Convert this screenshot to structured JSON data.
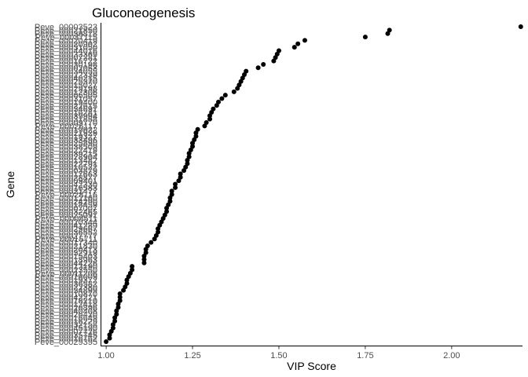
{
  "chart_data": {
    "type": "scatter",
    "title": "Gluconeogenesis",
    "xlabel": "VIP Score",
    "ylabel": "Gene",
    "xlim": [
      0.985,
      2.205
    ],
    "x_ticks": [
      1.0,
      1.25,
      1.5,
      1.75,
      2.0,
      2.25
    ],
    "x_tick_labels": [
      "1.00",
      "1.25",
      "1.50",
      "1.75",
      "2.00",
      "2.25"
    ],
    "grid": false,
    "legend": "none",
    "point_color": "#000000",
    "categories": [
      "Peve_00029395",
      "Peve_00016762",
      "Peve_00035745",
      "Peve_00007726",
      "Peve_00045190",
      "Peve_00032158",
      "Peve_00016229",
      "Peve_00016649",
      "Peve_00026420",
      "Peve_00040408",
      "Peve_00026896",
      "Peve_00012418",
      "Peve_00018210",
      "Peve_00042221",
      "Peve_00010870",
      "Peve_00034899",
      "Peve_00022380",
      "Peve_00036582",
      "Peve_00019372",
      "Peve_00018009",
      "Peve_00011206",
      "Peve_00023550",
      "Peve_00013190",
      "Peve_00044226",
      "Peve_00018963",
      "Peve_00015403",
      "Peve_00032919",
      "Peve_00020413",
      "Peve_00021830",
      "Peve_00017340",
      "Peve_00015711",
      "Peve_00027777",
      "Peve_00036552",
      "Peve_00029667",
      "Peve_00041289",
      "Peve_00020344",
      "Peve_00008511",
      "Peve_00025091",
      "Peve_00032465",
      "Peve_00007007",
      "Peve_00018459",
      "Peve_00024290",
      "Peve_00012160",
      "Peve_00028116",
      "Peve_00021477",
      "Peve_00016583",
      "Peve_00042330",
      "Peve_00009401",
      "Peve_00028877",
      "Peve_00017663",
      "Peve_00003879",
      "Peve_00010522",
      "Peve_00022791",
      "Peve_00013482",
      "Peve_00028904",
      "Peve_00039215",
      "Peve_00022419",
      "Peve_00038509",
      "Peve_00025890",
      "Peve_00033496",
      "Peve_00019327",
      "Peve_00021929",
      "Peve_00019622",
      "Peve_00026117",
      "Peve_00009770",
      "Peve_00031858",
      "Peve_00039994",
      "Peve_00016281",
      "Peve_00034691",
      "Peve_00022615",
      "Peve_00019400",
      "Peve_00031057",
      "Peve_00006505",
      "Peve_00012306",
      "Peve_00029198",
      "Peve_00015027",
      "Peve_00025370",
      "Peve_00040215",
      "Peve_00022339",
      "Peve_00034055",
      "Peve_00002053",
      "Peve_00030198",
      "Peve_00016722",
      "Peve_00007281",
      "Peve_00033369",
      "Peve_00044016",
      "Peve_00031050",
      "Peve_00020902",
      "Peve_00020419",
      "Peve_00037115",
      "Peve_00038818",
      "Peve_00021850",
      "Peve_00003523"
    ],
    "values": [
      1.0,
      1.01,
      1.01,
      1.015,
      1.02,
      1.02,
      1.025,
      1.025,
      1.03,
      1.03,
      1.035,
      1.035,
      1.04,
      1.04,
      1.04,
      1.05,
      1.055,
      1.06,
      1.06,
      1.065,
      1.07,
      1.075,
      1.075,
      1.11,
      1.11,
      1.11,
      1.115,
      1.115,
      1.12,
      1.13,
      1.14,
      1.145,
      1.15,
      1.15,
      1.155,
      1.16,
      1.165,
      1.17,
      1.175,
      1.175,
      1.18,
      1.185,
      1.185,
      1.19,
      1.19,
      1.2,
      1.2,
      1.21,
      1.215,
      1.215,
      1.225,
      1.23,
      1.235,
      1.235,
      1.24,
      1.24,
      1.245,
      1.25,
      1.25,
      1.255,
      1.26,
      1.26,
      1.265,
      1.285,
      1.29,
      1.3,
      1.3,
      1.305,
      1.31,
      1.32,
      1.325,
      1.335,
      1.345,
      1.37,
      1.38,
      1.385,
      1.39,
      1.395,
      1.4,
      1.405,
      1.44,
      1.455,
      1.485,
      1.49,
      1.495,
      1.5,
      1.545,
      1.555,
      1.575,
      1.75,
      1.815,
      1.82,
      2.2
    ]
  }
}
